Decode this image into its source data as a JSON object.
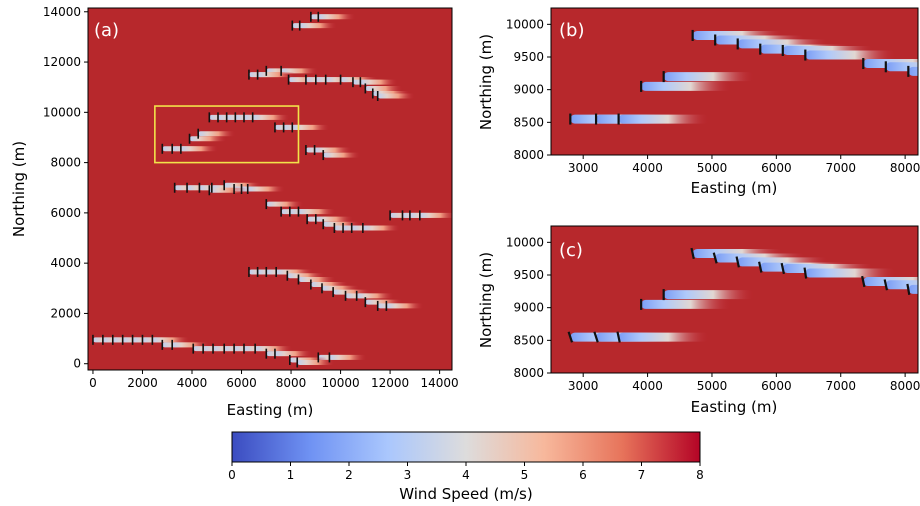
{
  "chart_data": [
    {
      "type": "heatmap",
      "panel_label": "(a)",
      "xlabel": "Easting (m)",
      "ylabel": "Northing (m)",
      "xlim": [
        -200,
        14500
      ],
      "ylim": [
        -250,
        14150
      ],
      "xticks": [
        0,
        2000,
        4000,
        6000,
        8000,
        10000,
        12000,
        14000
      ],
      "yticks": [
        0,
        2000,
        4000,
        6000,
        8000,
        10000,
        12000,
        14000
      ],
      "background_speed": 7.6,
      "highlight_box": {
        "x": [
          2500,
          8300
        ],
        "y": [
          8000,
          10250
        ],
        "color": "#f2e34a"
      },
      "rows": [
        {
          "y": 13800,
          "turbines": [
            8800,
            9100
          ]
        },
        {
          "y": 13450,
          "turbines": [
            8050,
            8350
          ]
        },
        {
          "y": 11650,
          "turbines": [
            7000,
            7600
          ]
        },
        {
          "y": 11500,
          "turbines": [
            6300,
            6650
          ]
        },
        {
          "y": 11300,
          "turbines": [
            7900,
            8600,
            9000,
            9400,
            10000
          ]
        },
        {
          "y": 11200,
          "turbines": [
            10500,
            10800
          ]
        },
        {
          "y": 10950,
          "turbines": [
            11000
          ]
        },
        {
          "y": 10750,
          "turbines": [
            11300
          ]
        },
        {
          "y": 10650,
          "turbines": [
            11500
          ]
        },
        {
          "y": 9800,
          "turbines": [
            4700,
            5050,
            5400,
            5750,
            6100,
            6450
          ]
        },
        {
          "y": 9400,
          "turbines": [
            7350,
            7700,
            8050
          ]
        },
        {
          "y": 9150,
          "turbines": [
            4250
          ]
        },
        {
          "y": 8950,
          "turbines": [
            3900
          ]
        },
        {
          "y": 8550,
          "turbines": [
            2800,
            3200,
            3550
          ]
        },
        {
          "y": 8500,
          "turbines": [
            8600,
            8950
          ]
        },
        {
          "y": 8300,
          "turbines": [
            9300
          ]
        },
        {
          "y": 7000,
          "turbines": [
            3300,
            3800,
            4300,
            4800
          ]
        },
        {
          "y": 7100,
          "turbines": [
            5300
          ]
        },
        {
          "y": 6950,
          "turbines": [
            5700,
            6000,
            6250
          ]
        },
        {
          "y": 6900,
          "turbines": [
            4700
          ]
        },
        {
          "y": 6350,
          "turbines": [
            7000
          ]
        },
        {
          "y": 6050,
          "turbines": [
            7600,
            7950,
            8300
          ]
        },
        {
          "y": 5900,
          "turbines": [
            12000,
            12500,
            12800,
            13200
          ]
        },
        {
          "y": 5750,
          "turbines": [
            8650,
            9000
          ]
        },
        {
          "y": 5550,
          "turbines": [
            9300
          ]
        },
        {
          "y": 5400,
          "turbines": [
            9750,
            10100,
            10450,
            10900
          ]
        },
        {
          "y": 3650,
          "turbines": [
            6300,
            6650,
            7000,
            7400
          ]
        },
        {
          "y": 3500,
          "turbines": [
            7850
          ]
        },
        {
          "y": 3350,
          "turbines": [
            8300
          ]
        },
        {
          "y": 3150,
          "turbines": [
            8800
          ]
        },
        {
          "y": 3000,
          "turbines": [
            9250
          ]
        },
        {
          "y": 2850,
          "turbines": [
            9700
          ]
        },
        {
          "y": 2700,
          "turbines": [
            10200,
            10650
          ]
        },
        {
          "y": 2450,
          "turbines": [
            11000
          ]
        },
        {
          "y": 2300,
          "turbines": [
            11500,
            11850
          ]
        },
        {
          "y": 950,
          "turbines": [
            0,
            400,
            800,
            1200,
            1600,
            2000,
            2400
          ]
        },
        {
          "y": 750,
          "turbines": [
            2800,
            3200
          ]
        },
        {
          "y": 600,
          "turbines": [
            4050,
            4450,
            4850,
            5300,
            5700,
            6100,
            6550
          ]
        },
        {
          "y": 400,
          "turbines": [
            7000,
            7350
          ]
        },
        {
          "y": 250,
          "turbines": [
            9100,
            9550
          ]
        },
        {
          "y": 150,
          "turbines": [
            7950
          ]
        },
        {
          "y": 50,
          "turbines": [
            8250
          ]
        }
      ]
    },
    {
      "type": "heatmap",
      "panel_label": "(b)",
      "xlabel": "Easting (m)",
      "ylabel": "Northing (m)",
      "xlim": [
        2500,
        8200
      ],
      "ylim": [
        8000,
        10250
      ],
      "xticks": [
        3000,
        4000,
        5000,
        6000,
        7000,
        8000
      ],
      "yticks": [
        8000,
        8500,
        9000,
        9500,
        10000
      ],
      "background_speed": 7.6,
      "turbines": [
        {
          "x": 2800,
          "y": 8550
        },
        {
          "x": 3200,
          "y": 8550
        },
        {
          "x": 3550,
          "y": 8550
        },
        {
          "x": 3900,
          "y": 9050
        },
        {
          "x": 4250,
          "y": 9200
        },
        {
          "x": 4700,
          "y": 9830
        },
        {
          "x": 5050,
          "y": 9760
        },
        {
          "x": 5400,
          "y": 9700
        },
        {
          "x": 5750,
          "y": 9620
        },
        {
          "x": 6100,
          "y": 9600
        },
        {
          "x": 6450,
          "y": 9530
        },
        {
          "x": 7350,
          "y": 9400
        },
        {
          "x": 7700,
          "y": 9350
        },
        {
          "x": 8050,
          "y": 9280
        }
      ]
    },
    {
      "type": "heatmap",
      "panel_label": "(c)",
      "xlabel": "Easting (m)",
      "ylabel": "Northing (m)",
      "xlim": [
        2500,
        8200
      ],
      "ylim": [
        8000,
        10250
      ],
      "xticks": [
        3000,
        4000,
        5000,
        6000,
        7000,
        8000
      ],
      "yticks": [
        8000,
        8500,
        9000,
        9500,
        10000
      ],
      "background_speed": 7.6,
      "turbines": [
        {
          "x": 2800,
          "y": 8550,
          "yaw": 18
        },
        {
          "x": 3200,
          "y": 8550,
          "yaw": 18
        },
        {
          "x": 3550,
          "y": 8550,
          "yaw": 12
        },
        {
          "x": 3900,
          "y": 9050,
          "yaw": 0
        },
        {
          "x": 4250,
          "y": 9200,
          "yaw": 0
        },
        {
          "x": 4700,
          "y": 9830,
          "yaw": 12
        },
        {
          "x": 5050,
          "y": 9760,
          "yaw": 15
        },
        {
          "x": 5400,
          "y": 9700,
          "yaw": 12
        },
        {
          "x": 5750,
          "y": 9620,
          "yaw": 12
        },
        {
          "x": 6100,
          "y": 9600,
          "yaw": 12
        },
        {
          "x": 6450,
          "y": 9530,
          "yaw": 8
        },
        {
          "x": 7350,
          "y": 9400,
          "yaw": 12
        },
        {
          "x": 7700,
          "y": 9350,
          "yaw": 12
        },
        {
          "x": 8050,
          "y": 9280,
          "yaw": 10
        }
      ]
    }
  ],
  "colorbar": {
    "label": "Wind Speed (m/s)",
    "min": 0,
    "max": 8,
    "ticks": [
      0,
      1,
      2,
      3,
      4,
      5,
      6,
      7,
      8
    ],
    "colormap": "coolwarm",
    "colors": [
      "#3b4cc0",
      "#6f92f3",
      "#aac7fd",
      "#dddcdc",
      "#f7b89c",
      "#e7745b",
      "#b40426"
    ]
  }
}
